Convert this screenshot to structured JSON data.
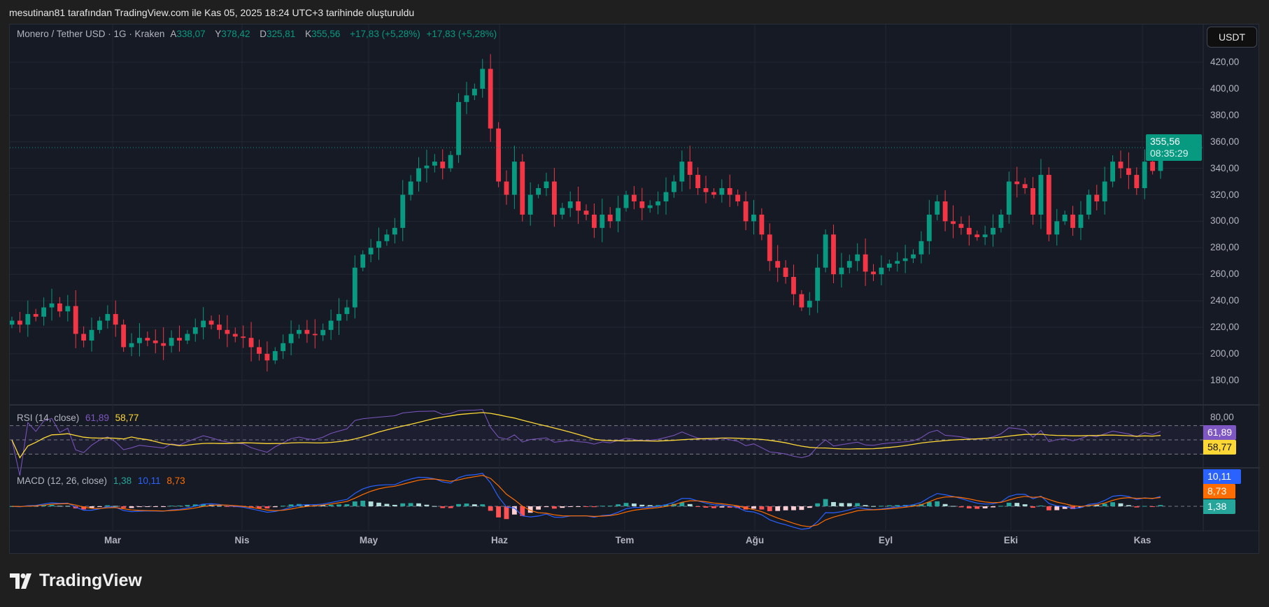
{
  "caption": "mesutinan81 tarafından TradingView.com ile Kas 05, 2025 18:24 UTC+3 tarihinde oluşturuldu",
  "header": {
    "symbol": "Monero / Tether USD · 1G · Kraken",
    "open_label": "A",
    "open": "338,07",
    "high_label": "Y",
    "high": "378,42",
    "low_label": "D",
    "low": "325,81",
    "close_label": "K",
    "close": "355,56",
    "change": "+17,83 (+5,28%)",
    "change2": "+17,83 (+5,28%)"
  },
  "currency_button": "USDT",
  "price_tag": {
    "price": "355,56",
    "countdown": "08:35:29"
  },
  "rsi": {
    "title": "RSI (14, close)",
    "value": "61,89",
    "ma": "58,77",
    "axis_label": "80,00"
  },
  "macd": {
    "title": "MACD (12, 26, close)",
    "hist": "1,38",
    "macd": "10,11",
    "signal": "8,73"
  },
  "logo": "TradingView",
  "colors": {
    "up": "#089981",
    "down": "#f23645",
    "rsi": "#7e57c2",
    "rsi_ma": "#fdd835",
    "macd": "#2962ff",
    "signal": "#ff6d00",
    "hist": "#26a69a"
  },
  "chart_data": {
    "type": "candlestick",
    "title": "Monero / Tether USD · 1G · Kraken",
    "yticks": [
      "420,00",
      "400,00",
      "380,00",
      "360,00",
      "340,00",
      "320,00",
      "300,00",
      "280,00",
      "260,00",
      "240,00",
      "220,00",
      "200,00",
      "180,00"
    ],
    "ylim": [
      170,
      430
    ],
    "xticks": [
      "Mar",
      "Nis",
      "May",
      "Haz",
      "Tem",
      "Ağu",
      "Eyl",
      "Eki",
      "Kas"
    ],
    "closes": [
      225,
      222,
      230,
      228,
      235,
      238,
      232,
      236,
      215,
      210,
      218,
      225,
      230,
      222,
      205,
      208,
      212,
      210,
      208,
      206,
      212,
      210,
      215,
      220,
      225,
      222,
      218,
      215,
      213,
      212,
      205,
      200,
      195,
      202,
      208,
      215,
      218,
      215,
      214,
      218,
      225,
      230,
      235,
      265,
      275,
      280,
      285,
      290,
      295,
      320,
      330,
      340,
      342,
      345,
      340,
      350,
      390,
      395,
      400,
      415,
      370,
      330,
      320,
      345,
      305,
      320,
      325,
      330,
      305,
      310,
      315,
      308,
      305,
      295,
      305,
      300,
      310,
      320,
      315,
      310,
      312,
      315,
      322,
      330,
      345,
      335,
      325,
      322,
      320,
      325,
      320,
      315,
      300,
      305,
      290,
      270,
      265,
      258,
      245,
      235,
      240,
      265,
      290,
      260,
      265,
      270,
      275,
      262,
      260,
      265,
      268,
      270,
      272,
      275,
      285,
      305,
      315,
      300,
      298,
      295,
      290,
      288,
      290,
      295,
      305,
      330,
      328,
      325,
      305,
      335,
      290,
      300,
      305,
      295,
      305,
      320,
      315,
      330,
      345,
      340,
      335,
      325,
      345,
      338,
      355.56
    ],
    "current_price": 355.56
  }
}
